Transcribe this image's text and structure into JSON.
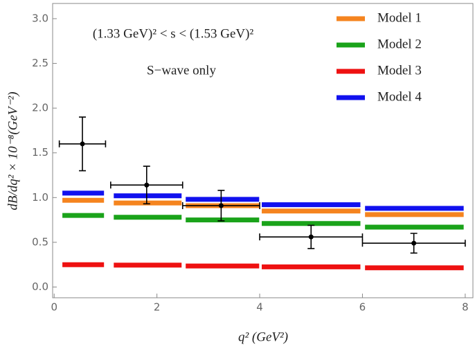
{
  "chart_data": {
    "type": "binned-errorbar",
    "xlabel": "q² (GeV²)",
    "ylabel": "dB/dq² × 10⁻⁸(GeV⁻²)",
    "annotations": [
      "(1.33 GeV)² < s < (1.53 GeV)²",
      "S−wave only"
    ],
    "xlim": [
      -0.03,
      8.15
    ],
    "ylim": [
      -0.12,
      3.17
    ],
    "xticks": [
      0,
      2,
      4,
      6,
      8
    ],
    "yticks": [
      {
        "value": 0,
        "label": "0.0"
      },
      0.5,
      {
        "value": 1,
        "label": "1.0"
      },
      1.5,
      {
        "value": 2,
        "label": "2.0"
      },
      2.5,
      {
        "value": 3,
        "label": "3.0"
      }
    ],
    "x_start": [
      0.16,
      1.16,
      2.56,
      4.04,
      6.05
    ],
    "x_end": [
      0.97,
      2.48,
      3.99,
      5.96,
      7.97
    ],
    "series": [
      {
        "name": "Model 1",
        "color": "#f5841f",
        "values": [
          0.97,
          0.94,
          0.91,
          0.85,
          0.81
        ]
      },
      {
        "name": "Model 2",
        "color": "#1aa31a",
        "values": [
          0.8,
          0.78,
          0.75,
          0.71,
          0.67
        ]
      },
      {
        "name": "Model 3",
        "color": "#ee1111",
        "values": [
          0.25,
          0.245,
          0.235,
          0.225,
          0.215
        ]
      },
      {
        "name": "Model 4",
        "color": "#1111ee",
        "values": [
          1.05,
          1.02,
          0.98,
          0.92,
          0.88
        ]
      }
    ],
    "data": {
      "color": "#000000",
      "x": [
        0.55,
        1.8,
        3.25,
        5.0,
        7.0
      ],
      "xerr": [
        0.45,
        0.7,
        0.75,
        1.0,
        1.0
      ],
      "y": [
        1.6,
        1.14,
        0.91,
        0.56,
        0.49
      ],
      "yerr": [
        0.3,
        0.21,
        0.17,
        0.13,
        0.11
      ]
    }
  }
}
